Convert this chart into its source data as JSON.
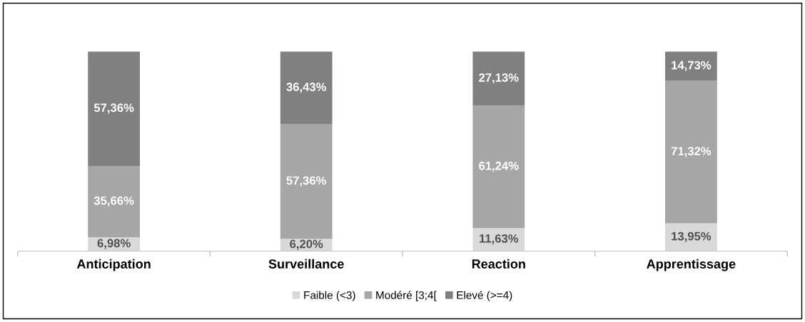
{
  "chart_data": {
    "type": "bar",
    "stacked": true,
    "legend": "bottom",
    "grid": false,
    "categories": [
      "Anticipation",
      "Surveillance",
      "Reaction",
      "Apprentissage"
    ],
    "series": [
      {
        "name": "Faible (<3)",
        "color": "#d9d9d9",
        "values": [
          6.98,
          6.2,
          11.63,
          13.95
        ],
        "value_labels": [
          "6,98%",
          "6,20%",
          "11,63%",
          "13,95%"
        ]
      },
      {
        "name": "Modéré [3;4[",
        "color": "#a6a6a6",
        "values": [
          35.66,
          57.36,
          61.24,
          71.32
        ],
        "value_labels": [
          "35,66%",
          "57,36%",
          "61,24%",
          "71,32%"
        ]
      },
      {
        "name": "Elevé (>=4)",
        "color": "#808080",
        "values": [
          57.36,
          36.43,
          27.13,
          14.73
        ],
        "value_labels": [
          "57,36%",
          "36,43%",
          "27,13%",
          "14,73%"
        ]
      }
    ]
  }
}
